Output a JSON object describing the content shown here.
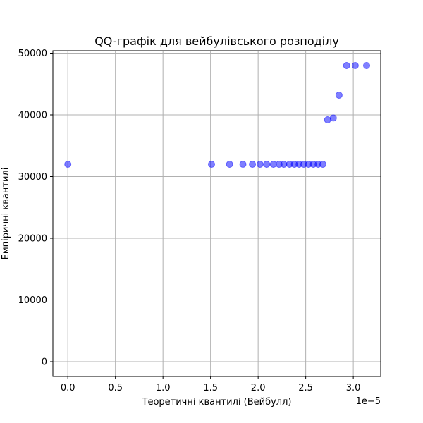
{
  "chart_data": {
    "type": "scatter",
    "title": "QQ-графік для вейбулівського розподілу",
    "xlabel": "Теоретичні квантилі (Вейбулл)",
    "ylabel": "Емпіричні квантилі",
    "x_offset_label": "1e−5",
    "xlim": [
      -0.157,
      3.288
    ],
    "ylim": [
      -2400,
      50400
    ],
    "x_ticks": [
      0.0,
      0.5,
      1.0,
      1.5,
      2.0,
      2.5,
      3.0
    ],
    "x_tick_labels": [
      "0.0",
      "0.5",
      "1.0",
      "1.5",
      "2.0",
      "2.5",
      "3.0"
    ],
    "y_ticks": [
      0,
      10000,
      20000,
      30000,
      40000,
      50000
    ],
    "y_tick_labels": [
      "0",
      "10000",
      "20000",
      "30000",
      "40000",
      "50000"
    ],
    "grid": true,
    "marker_color": "#0000ff",
    "marker_alpha": 0.5,
    "series": [
      {
        "x": [
          0.0,
          1.51,
          1.7,
          1.84,
          1.94,
          2.02,
          2.09,
          2.16,
          2.22,
          2.27,
          2.33,
          2.38,
          2.43,
          2.48,
          2.53,
          2.58,
          2.63,
          2.68,
          2.73,
          2.79,
          2.85,
          2.93,
          3.02,
          3.14
        ],
        "y": [
          32000,
          32000,
          32000,
          32000,
          32000,
          32000,
          32000,
          32000,
          32000,
          32000,
          32000,
          32000,
          32000,
          32000,
          32000,
          32000,
          32000,
          32000,
          39200,
          39500,
          43200,
          48000,
          48000,
          48000
        ]
      }
    ]
  }
}
